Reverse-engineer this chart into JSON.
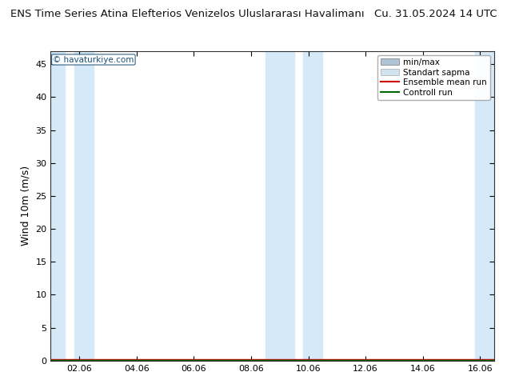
{
  "title_left": "ENS Time Series Atina Elefterios Venizelos Uluslararası Havalimanı",
  "title_right": "Cu. 31.05.2024 14 UTC",
  "ylabel": "Wind 10m (m/s)",
  "watermark": "© havaturkiye.com",
  "ylim": [
    0,
    47
  ],
  "yticks": [
    0,
    5,
    10,
    15,
    20,
    25,
    30,
    35,
    40,
    45
  ],
  "x_min": 0.0,
  "x_max": 15.5,
  "x_tick_labels": [
    "02.06",
    "04.06",
    "06.06",
    "08.06",
    "10.06",
    "12.06",
    "14.06",
    "16.06"
  ],
  "x_tick_positions": [
    1.0,
    3.0,
    5.0,
    7.0,
    9.0,
    11.0,
    13.0,
    15.0
  ],
  "shaded_spans": [
    [
      0.0,
      0.5
    ],
    [
      0.83,
      1.5
    ],
    [
      7.5,
      8.5
    ],
    [
      8.83,
      9.5
    ],
    [
      14.83,
      15.5
    ]
  ],
  "shade_color": "#d6e9f8",
  "bg_color": "#ffffff",
  "plot_bg_color": "#ffffff",
  "legend_labels": [
    "min/max",
    "Standart sapma",
    "Ensemble mean run",
    "Controll run"
  ],
  "ensemble_mean_color": "#cc0000",
  "control_run_color": "#006600",
  "minmax_color": "#b0c4d8",
  "stddev_color": "#d0e4f0",
  "title_fontsize": 9.5,
  "axis_fontsize": 9,
  "tick_fontsize": 8
}
